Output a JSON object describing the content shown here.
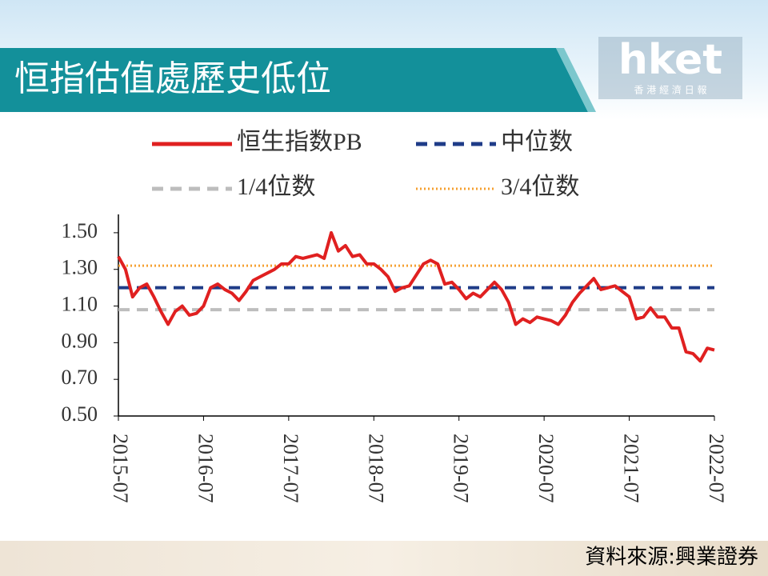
{
  "header": {
    "title": "恒指估值處歷史低位",
    "logo": "hket",
    "logo_subtitle": "香 港 經 濟 日 報"
  },
  "source": "資料來源:興業證券",
  "chart_data": {
    "type": "line",
    "x": [
      "2015-07",
      "2015-08",
      "2015-09",
      "2015-10",
      "2015-11",
      "2015-12",
      "2016-01",
      "2016-02",
      "2016-03",
      "2016-04",
      "2016-05",
      "2016-06",
      "2016-07",
      "2016-08",
      "2016-09",
      "2016-10",
      "2016-11",
      "2016-12",
      "2017-01",
      "2017-02",
      "2017-03",
      "2017-04",
      "2017-05",
      "2017-06",
      "2017-07",
      "2017-08",
      "2017-09",
      "2017-10",
      "2017-11",
      "2017-12",
      "2018-01",
      "2018-02",
      "2018-03",
      "2018-04",
      "2018-05",
      "2018-06",
      "2018-07",
      "2018-08",
      "2018-09",
      "2018-10",
      "2018-11",
      "2018-12",
      "2019-01",
      "2019-02",
      "2019-03",
      "2019-04",
      "2019-05",
      "2019-06",
      "2019-07",
      "2019-08",
      "2019-09",
      "2019-10",
      "2019-11",
      "2019-12",
      "2020-01",
      "2020-02",
      "2020-03",
      "2020-04",
      "2020-05",
      "2020-06",
      "2020-07",
      "2020-08",
      "2020-09",
      "2020-10",
      "2020-11",
      "2020-12",
      "2021-01",
      "2021-02",
      "2021-03",
      "2021-04",
      "2021-05",
      "2021-06",
      "2021-07",
      "2021-08",
      "2021-09",
      "2021-10",
      "2021-11",
      "2021-12",
      "2022-01",
      "2022-02",
      "2022-03",
      "2022-04",
      "2022-05",
      "2022-06",
      "2022-07"
    ],
    "series": [
      {
        "name": "恒生指数PB",
        "color": "#e02020",
        "values": [
          1.37,
          1.3,
          1.15,
          1.2,
          1.22,
          1.15,
          1.07,
          1.0,
          1.07,
          1.1,
          1.05,
          1.06,
          1.1,
          1.2,
          1.22,
          1.19,
          1.17,
          1.13,
          1.18,
          1.24,
          1.26,
          1.28,
          1.3,
          1.33,
          1.33,
          1.37,
          1.36,
          1.37,
          1.38,
          1.36,
          1.5,
          1.4,
          1.43,
          1.37,
          1.38,
          1.33,
          1.33,
          1.3,
          1.26,
          1.18,
          1.2,
          1.21,
          1.27,
          1.33,
          1.35,
          1.33,
          1.22,
          1.23,
          1.19,
          1.14,
          1.17,
          1.15,
          1.19,
          1.23,
          1.19,
          1.12,
          1.0,
          1.03,
          1.01,
          1.04,
          1.03,
          1.02,
          1.0,
          1.05,
          1.12,
          1.17,
          1.21,
          1.25,
          1.19,
          1.2,
          1.21,
          1.18,
          1.15,
          1.03,
          1.04,
          1.09,
          1.04,
          1.04,
          0.98,
          0.98,
          0.85,
          0.84,
          0.8,
          0.87,
          0.86
        ]
      }
    ],
    "reference_lines": [
      {
        "name": "中位数",
        "value": 1.2,
        "color": "#1f3c88",
        "dash": "dashed"
      },
      {
        "name": "1/4位数",
        "value": 1.08,
        "color": "#bdbdbd",
        "dash": "dashed"
      },
      {
        "name": "3/4位数",
        "value": 1.32,
        "color": "#f5a030",
        "dash": "dotted"
      }
    ],
    "ylim": [
      0.5,
      1.6
    ],
    "yticks": [
      {
        "value": 0.5,
        "label": "0.50"
      },
      {
        "value": 0.7,
        "label": "0.70"
      },
      {
        "value": 0.9,
        "label": "0.90"
      },
      {
        "value": 1.1,
        "label": "1.10"
      },
      {
        "value": 1.3,
        "label": "1.30"
      },
      {
        "value": 1.5,
        "label": "1.50"
      }
    ],
    "xticks": [
      "2015-07",
      "2016-07",
      "2017-07",
      "2018-07",
      "2019-07",
      "2020-07",
      "2021-07",
      "2022-07"
    ],
    "grid": false,
    "legend": "top"
  }
}
